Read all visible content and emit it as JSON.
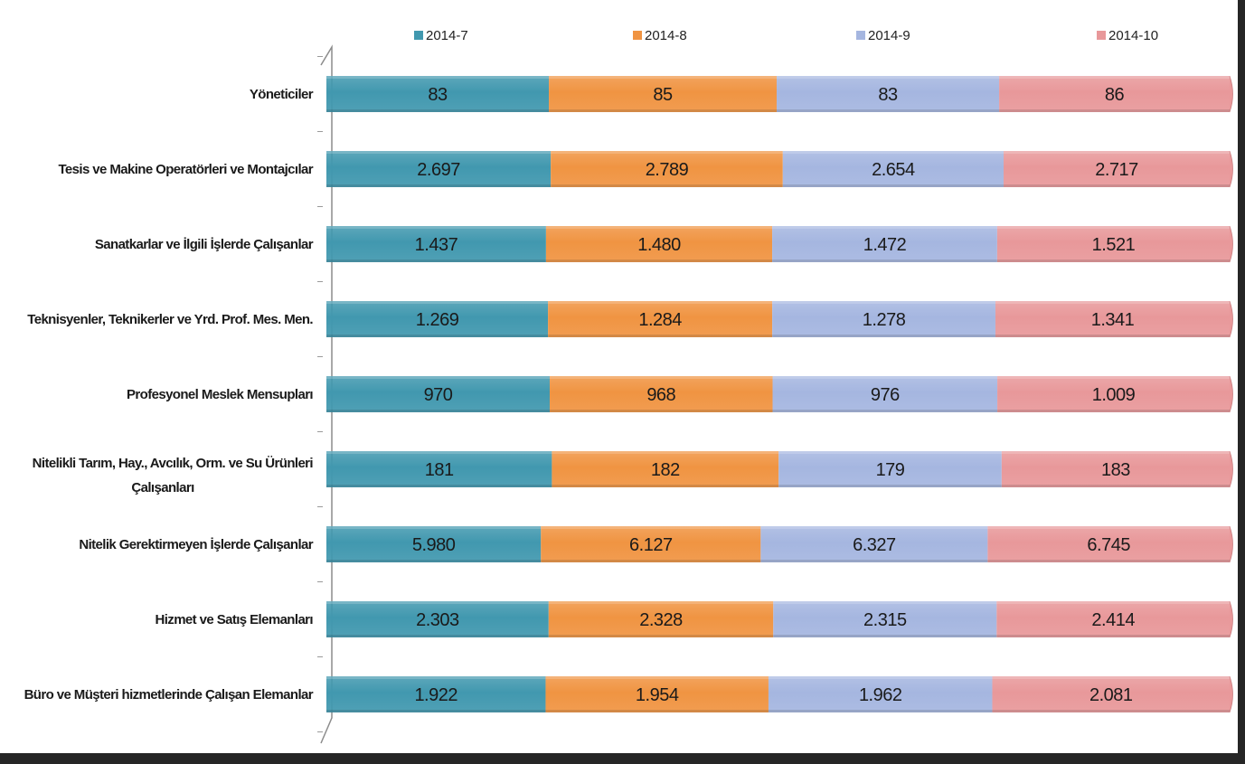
{
  "chart_data": {
    "type": "bar",
    "orientation": "horizontal",
    "stacked": "percent",
    "title": "",
    "xlabel": "",
    "ylabel": "",
    "grid": false,
    "legend_position": "top",
    "categories": [
      "Yöneticiler",
      "Tesis ve Makine Operatörleri ve Montajcılar",
      "Sanatkarlar ve İlgili İşlerde Çalışanlar",
      "Teknisyenler, Teknikerler ve Yrd. Prof. Mes. Men.",
      "Profesyonel Meslek Mensupları",
      "Nitelikli Tarım, Hay., Avcılık, Orm. ve Su Ürünleri Çalışanları",
      "Nitelik Gerektirmeyen İşlerde Çalışanlar",
      "Hizmet ve Satış Elemanları",
      "Büro ve Müşteri hizmetlerinde Çalışan Elemanlar"
    ],
    "category_lines": [
      [
        "Yöneticiler"
      ],
      [
        "Tesis ve Makine Operatörleri ve Montajcılar"
      ],
      [
        "Sanatkarlar ve İlgili İşlerde Çalışanlar"
      ],
      [
        "Teknisyenler, Teknikerler ve Yrd. Prof. Mes. Men."
      ],
      [
        "Profesyonel Meslek Mensupları"
      ],
      [
        "Nitelikli Tarım, Hay., Avcılık, Orm. ve Su Ürünleri",
        "Çalışanları"
      ],
      [
        "Nitelik Gerektirmeyen İşlerde Çalışanlar"
      ],
      [
        "Hizmet ve Satış Elemanları"
      ],
      [
        "Büro ve Müşteri hizmetlerinde Çalışan Elemanlar"
      ]
    ],
    "series": [
      {
        "name": "2014-7",
        "color": "#4198af",
        "values": [
          83,
          2697,
          1437,
          1269,
          970,
          181,
          5980,
          2303,
          1922
        ],
        "labels": [
          "83",
          "2.697",
          "1.437",
          "1.269",
          "970",
          "181",
          "5.980",
          "2.303",
          "1.922"
        ]
      },
      {
        "name": "2014-8",
        "color": "#f09442",
        "values": [
          85,
          2789,
          1480,
          1284,
          968,
          182,
          6127,
          2328,
          1954
        ],
        "labels": [
          "85",
          "2.789",
          "1.480",
          "1.284",
          "968",
          "182",
          "6.127",
          "2.328",
          "1.954"
        ]
      },
      {
        "name": "2014-9",
        "color": "#a5b6e0",
        "values": [
          83,
          2654,
          1472,
          1278,
          976,
          179,
          6327,
          2315,
          1962
        ],
        "labels": [
          "83",
          "2.654",
          "1.472",
          "1.278",
          "976",
          "179",
          "6.327",
          "2.315",
          "1.962"
        ]
      },
      {
        "name": "2014-10",
        "color": "#e8989a",
        "values": [
          86,
          2717,
          1521,
          1341,
          1009,
          183,
          6745,
          2414,
          2081
        ],
        "labels": [
          "86",
          "2.717",
          "1.521",
          "1.341",
          "1.009",
          "183",
          "6.745",
          "2.414",
          "2.081"
        ]
      }
    ]
  }
}
